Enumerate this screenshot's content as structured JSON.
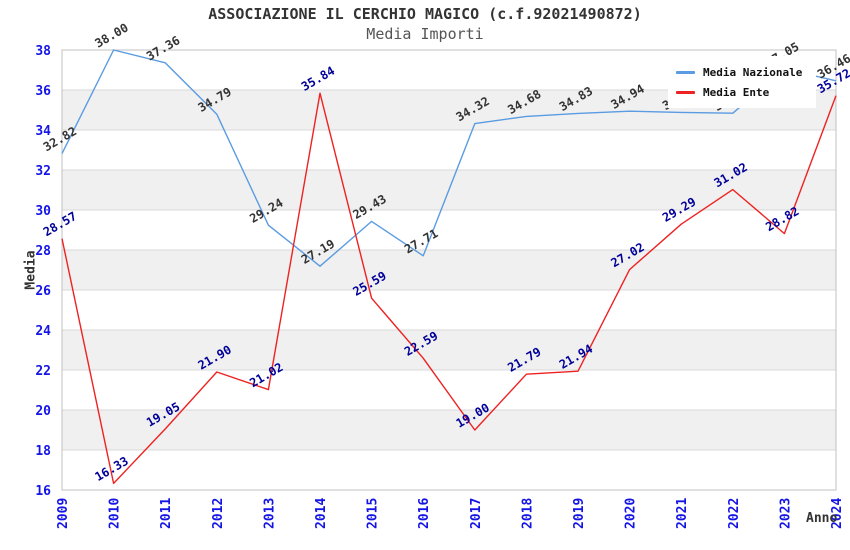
{
  "header": {
    "title": "ASSOCIAZIONE IL CERCHIO MAGICO (c.f.92021490872)",
    "subtitle": "Media Importi"
  },
  "chart_data": {
    "type": "line",
    "title": "ASSOCIAZIONE IL CERCHIO MAGICO (c.f.92021490872)",
    "subtitle": "Media Importi",
    "xlabel": "Anno",
    "ylabel": "Media",
    "categories": [
      "2009",
      "2010",
      "2011",
      "2012",
      "2013",
      "2014",
      "2015",
      "2016",
      "2017",
      "2018",
      "2019",
      "2020",
      "2021",
      "2022",
      "2023",
      "2024"
    ],
    "ylim": [
      16,
      38
    ],
    "yticks": [
      16,
      18,
      20,
      22,
      24,
      26,
      28,
      30,
      32,
      34,
      36,
      38
    ],
    "shaded_bands": [
      [
        18,
        20
      ],
      [
        22,
        24
      ],
      [
        26,
        28
      ],
      [
        30,
        32
      ],
      [
        34,
        36
      ]
    ],
    "grid_on": true,
    "legend_position": "top-right",
    "series": [
      {
        "name": "Media Nazionale",
        "color": "#5a9be1",
        "label_color": "#333333",
        "values": [
          32.82,
          38.0,
          37.36,
          34.79,
          29.24,
          27.19,
          29.43,
          27.71,
          34.32,
          34.68,
          34.83,
          34.94,
          34.88,
          34.84,
          37.05,
          36.46
        ]
      },
      {
        "name": "Media Ente",
        "color": "#ee2222",
        "label_color": "#000099",
        "values": [
          28.57,
          16.33,
          19.05,
          21.9,
          21.02,
          35.84,
          25.59,
          22.59,
          19.0,
          21.79,
          21.94,
          27.02,
          29.29,
          31.02,
          28.82,
          35.72
        ]
      }
    ],
    "colors": {
      "axis_tick": "#1414e6",
      "band": "#f0f0f0",
      "grid_line": "#d9d9d9",
      "border": "#c0c0c0"
    }
  }
}
